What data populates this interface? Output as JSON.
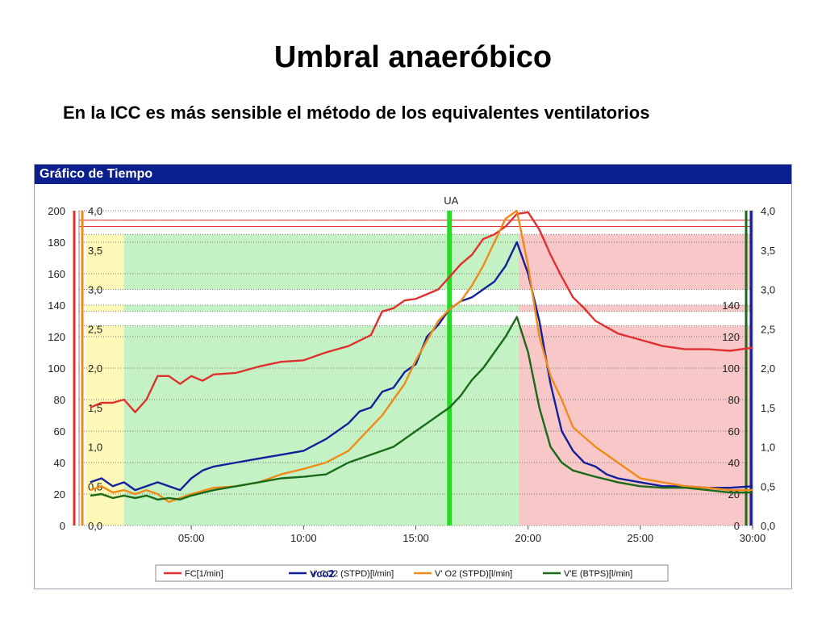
{
  "slide": {
    "title": "Umbral anaeróbico",
    "subtitle": "En la ICC es más sensible el método de los equivalentes ventilatorios"
  },
  "chart_data": {
    "type": "line",
    "title": "Gráfico de Tiempo",
    "xlabel": "",
    "x_tick_labels": [
      "05:00",
      "10:00",
      "15:00",
      "20:00",
      "25:00",
      "30:00"
    ],
    "x_ticks_min": [
      5,
      10,
      15,
      20,
      25,
      30
    ],
    "xlim": [
      0,
      30
    ],
    "left_axis": {
      "ylim": [
        0,
        200
      ],
      "ticks": [
        "0",
        "20",
        "40",
        "60",
        "80",
        "100",
        "120",
        "140",
        "160",
        "180",
        "200"
      ]
    },
    "inner_left_axis": {
      "ylim": [
        0,
        4
      ],
      "ticks": [
        "0,0",
        "0,5",
        "1,0",
        "1,5",
        "2,0",
        "2,5",
        "3,0",
        "3,5",
        "4,0"
      ]
    },
    "right_axis": {
      "ylim": [
        0,
        4
      ],
      "ticks": [
        "0,0",
        "0,5",
        "1,0",
        "1,5",
        "2,0",
        "2,5",
        "3,0",
        "3,5",
        "4,0"
      ]
    },
    "inner_right_axis": {
      "ticks": [
        "0",
        "20",
        "40",
        "60",
        "80",
        "100",
        "120",
        "140"
      ]
    },
    "annotations": [
      {
        "label": "UA",
        "x_min": 16.5
      },
      {
        "label": "vco2"
      }
    ],
    "zones": [
      {
        "name": "yellow",
        "from_min": 0.3,
        "to_min": 2.0,
        "color": "#fdf8b8"
      },
      {
        "name": "green",
        "from_min": 2.0,
        "to_min": 19.6,
        "color": "#c4f2c4"
      },
      {
        "name": "red",
        "from_min": 19.6,
        "to_min": 30.0,
        "color": "#f8c7c7"
      }
    ],
    "series": [
      {
        "name": "FC[1/min]",
        "color": "#e03030",
        "axis": "left",
        "x": [
          0.5,
          1,
          1.5,
          2,
          2.5,
          3,
          3.5,
          4,
          4.5,
          5,
          5.5,
          6,
          7,
          8,
          9,
          10,
          11,
          12,
          13,
          13.5,
          14,
          14.5,
          15,
          15.5,
          16,
          16.5,
          17,
          17.5,
          18,
          18.5,
          19,
          19.5,
          20,
          20.5,
          21,
          21.5,
          22,
          22.5,
          23,
          23.5,
          24,
          24.5,
          25,
          26,
          27,
          28,
          29,
          30
        ],
        "values": [
          75,
          78,
          78,
          80,
          72,
          80,
          95,
          95,
          90,
          95,
          92,
          96,
          97,
          101,
          104,
          105,
          110,
          114,
          121,
          136,
          138,
          143,
          144,
          147,
          150,
          158,
          166,
          172,
          182,
          185,
          190,
          198,
          199,
          188,
          172,
          158,
          145,
          138,
          130,
          126,
          122,
          120,
          118,
          114,
          112,
          112,
          111,
          113
        ]
      },
      {
        "name": "V' CO2 (STPD)[l/min]",
        "color": "#12209a",
        "axis": "right",
        "x": [
          0.5,
          1,
          1.5,
          2,
          2.5,
          3,
          3.5,
          4,
          4.5,
          5,
          5.5,
          6,
          7,
          8,
          9,
          10,
          11,
          12,
          12.5,
          13,
          13.5,
          14,
          14.5,
          15,
          15.5,
          16,
          16.5,
          17,
          17.5,
          18,
          18.5,
          19,
          19.5,
          20,
          20.5,
          21,
          21.5,
          22,
          22.5,
          23,
          23.5,
          24,
          25,
          26,
          27,
          28,
          29,
          30
        ],
        "values": [
          0.55,
          0.6,
          0.5,
          0.55,
          0.45,
          0.5,
          0.55,
          0.5,
          0.45,
          0.6,
          0.7,
          0.75,
          0.8,
          0.85,
          0.9,
          0.95,
          1.1,
          1.3,
          1.45,
          1.5,
          1.7,
          1.75,
          1.95,
          2.05,
          2.4,
          2.55,
          2.75,
          2.85,
          2.9,
          3.0,
          3.1,
          3.3,
          3.6,
          3.2,
          2.6,
          1.8,
          1.2,
          0.95,
          0.8,
          0.75,
          0.65,
          0.6,
          0.55,
          0.5,
          0.5,
          0.48,
          0.48,
          0.5
        ]
      },
      {
        "name": "V' O2 (STPD)[l/min]",
        "color": "#f08a1a",
        "axis": "right",
        "x": [
          0.5,
          1,
          1.5,
          2,
          2.5,
          3,
          3.5,
          4,
          4.5,
          5,
          6,
          7,
          8,
          9,
          10,
          11,
          12,
          12.5,
          13,
          13.5,
          14,
          14.5,
          15,
          15.5,
          16,
          16.5,
          17,
          17.5,
          18,
          18.5,
          19,
          19.5,
          20,
          20.5,
          21,
          21.5,
          22,
          23,
          24,
          25,
          26,
          27,
          28,
          29,
          30
        ],
        "values": [
          0.45,
          0.5,
          0.42,
          0.45,
          0.4,
          0.45,
          0.4,
          0.3,
          0.35,
          0.4,
          0.48,
          0.5,
          0.55,
          0.65,
          0.72,
          0.8,
          0.95,
          1.1,
          1.25,
          1.4,
          1.6,
          1.8,
          2.1,
          2.35,
          2.6,
          2.75,
          2.85,
          3.05,
          3.3,
          3.6,
          3.9,
          4.0,
          3.3,
          2.4,
          1.9,
          1.6,
          1.25,
          1.0,
          0.8,
          0.6,
          0.55,
          0.5,
          0.48,
          0.45,
          0.45
        ]
      },
      {
        "name": "V'E (BTPS)[l/min]",
        "color": "#1a6a1a",
        "axis": "right",
        "x": [
          0.5,
          1,
          1.5,
          2,
          2.5,
          3,
          3.5,
          4,
          4.5,
          5,
          6,
          7,
          8,
          9,
          10,
          11,
          12,
          13,
          14,
          14.5,
          15,
          15.5,
          16,
          16.5,
          17,
          17.5,
          18,
          18.5,
          19,
          19.5,
          20,
          20.5,
          21,
          21.5,
          22,
          23,
          24,
          25,
          26,
          27,
          28,
          29,
          30
        ],
        "values": [
          0.38,
          0.4,
          0.35,
          0.38,
          0.35,
          0.38,
          0.33,
          0.35,
          0.33,
          0.38,
          0.45,
          0.5,
          0.55,
          0.6,
          0.62,
          0.65,
          0.8,
          0.9,
          1.0,
          1.1,
          1.2,
          1.3,
          1.4,
          1.5,
          1.65,
          1.85,
          2.0,
          2.2,
          2.4,
          2.65,
          2.2,
          1.5,
          1.0,
          0.8,
          0.7,
          0.62,
          0.55,
          0.5,
          0.48,
          0.48,
          0.45,
          0.42,
          0.42
        ]
      }
    ],
    "legend": [
      "FC[1/min]",
      "V' CO2 (STPD)[l/min]",
      "V' O2 (STPD)[l/min]",
      "V'E (BTPS)[l/min]"
    ],
    "legend_position": "bottom"
  }
}
